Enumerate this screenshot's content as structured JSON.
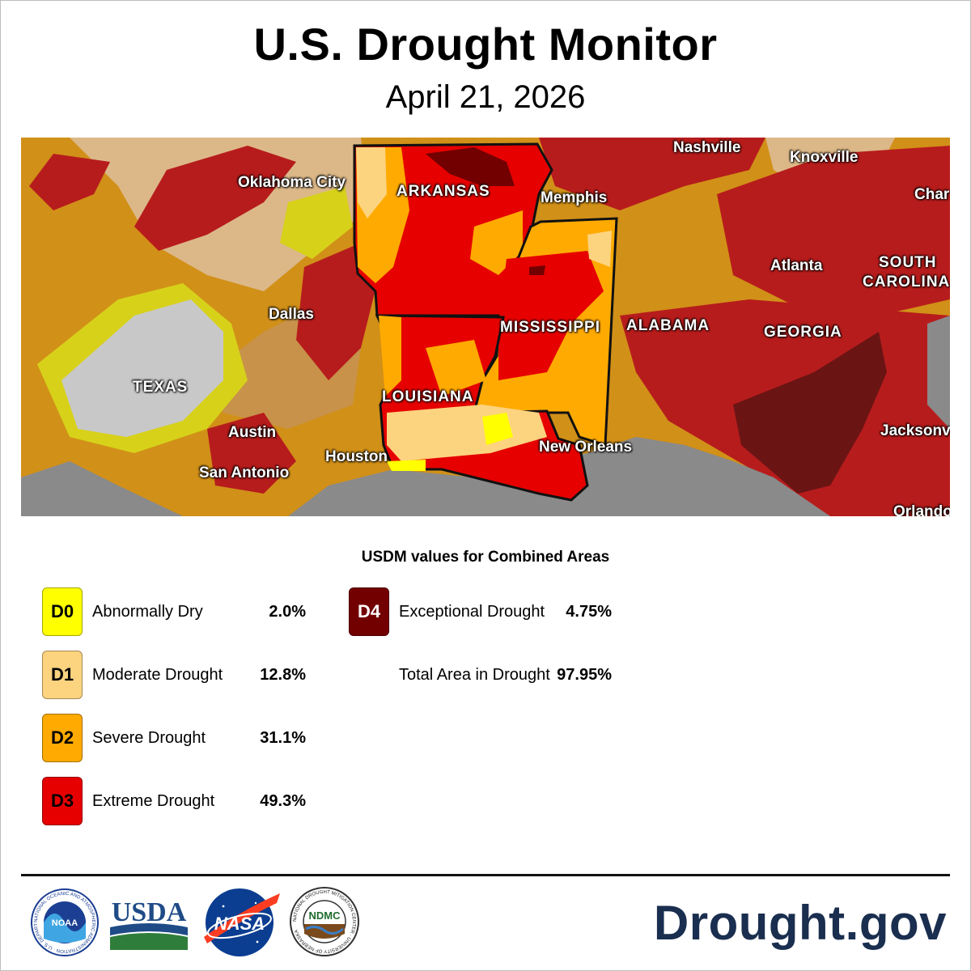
{
  "header": {
    "title": "U.S. Drought Monitor",
    "date": "April 21, 2026"
  },
  "map": {
    "cities": [
      {
        "id": "nashville",
        "name": "Nashville"
      },
      {
        "id": "knoxville",
        "name": "Knoxville"
      },
      {
        "id": "oklahoma-city",
        "name": "Oklahoma City"
      },
      {
        "id": "memphis",
        "name": "Memphis"
      },
      {
        "id": "charlotte",
        "name": "Char"
      },
      {
        "id": "atlanta",
        "name": "Atlanta"
      },
      {
        "id": "dallas",
        "name": "Dallas"
      },
      {
        "id": "austin",
        "name": "Austin"
      },
      {
        "id": "houston",
        "name": "Houston"
      },
      {
        "id": "san-antonio",
        "name": "San Antonio"
      },
      {
        "id": "new-orleans",
        "name": "New Orleans"
      },
      {
        "id": "jacksonville",
        "name": "Jacksonv"
      },
      {
        "id": "orlando",
        "name": "Orlando"
      }
    ],
    "states": [
      {
        "id": "arkansas",
        "name": "ARKANSAS"
      },
      {
        "id": "mississippi",
        "name": "MISSISSIPPI"
      },
      {
        "id": "alabama",
        "name": "ALABAMA"
      },
      {
        "id": "georgia",
        "name": "GEORGIA"
      },
      {
        "id": "louisiana",
        "name": "LOUISIANA"
      },
      {
        "id": "texas",
        "name": "TEXAS"
      },
      {
        "id": "south-carolina-1",
        "name": "SOUTH"
      },
      {
        "id": "south-carolina-2",
        "name": "CAROLINA"
      }
    ]
  },
  "legend": {
    "heading": "USDM values for Combined Areas",
    "categories": [
      {
        "code": "D0",
        "label": "Abnormally Dry",
        "value": "2.0%",
        "color": "#ffff00",
        "text_color": "#000000"
      },
      {
        "code": "D1",
        "label": "Moderate Drought",
        "value": "12.8%",
        "color": "#fcd37f",
        "text_color": "#000000"
      },
      {
        "code": "D2",
        "label": "Severe Drought",
        "value": "31.1%",
        "color": "#ffaa00",
        "text_color": "#000000"
      },
      {
        "code": "D3",
        "label": "Extreme Drought",
        "value": "49.3%",
        "color": "#e60000",
        "text_color": "#000000"
      },
      {
        "code": "D4",
        "label": "Exceptional Drought",
        "value": "4.75%",
        "color": "#730000",
        "text_color": "#ffffff"
      }
    ],
    "total_label": "Total Area in Drought",
    "total_value": "97.95%"
  },
  "footer": {
    "logos": [
      {
        "id": "noaa",
        "text": "NOAA",
        "ring_text": "NATIONAL OCEANIC AND ATMOSPHERIC ADMINISTRATION · U.S. DEPARTMENT OF COMMERCE"
      },
      {
        "id": "usda",
        "text": "USDA"
      },
      {
        "id": "nasa",
        "text": "NASA"
      },
      {
        "id": "ndmc",
        "text": "NDMC",
        "ring_text": "NATIONAL DROUGHT MITIGATION CENTER · UNIVERSITY OF NEBRASKA"
      }
    ],
    "site": "Drought.gov"
  },
  "colors": {
    "water": "#7a7a7a",
    "no_drought_gray": "#c8c8c8",
    "state_border": "#111111",
    "brand_navy": "#1a2e4f"
  }
}
